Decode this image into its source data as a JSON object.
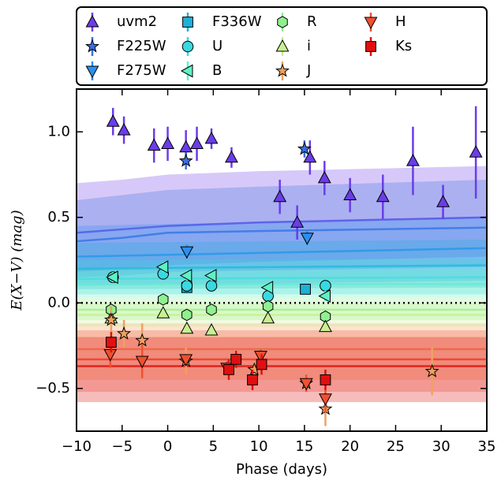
{
  "chart_data": {
    "type": "scatter",
    "xlabel": "Phase (days)",
    "ylabel": "E(X−V)  (mag)",
    "xlim": [
      -10,
      35
    ],
    "ylim": [
      -0.75,
      1.25
    ],
    "xticks": [
      {
        "value": -10,
        "label": "−10"
      },
      {
        "value": -5,
        "label": "−5"
      },
      0,
      5,
      10,
      15,
      20,
      25,
      30,
      35
    ],
    "yticks": [
      {
        "value": -0.5,
        "label": "−0.5"
      },
      {
        "value": 0,
        "label": "0.0"
      },
      0.5,
      {
        "value": 1,
        "label": "1.0"
      }
    ],
    "reference_line": 0,
    "series": [
      {
        "name": "uvm2",
        "color": "#6a3de8",
        "marker": "^",
        "x": [
          -6,
          -4.8,
          -1.5,
          0,
          2,
          3.2,
          4.8,
          7,
          12.3,
          14.2,
          15.6,
          17.2,
          20,
          23.6,
          26.9,
          30.2,
          33.8
        ],
        "values": [
          1.06,
          1.01,
          0.92,
          0.93,
          0.91,
          0.93,
          0.96,
          0.85,
          0.62,
          0.47,
          0.85,
          0.73,
          0.63,
          0.62,
          0.83,
          0.59,
          0.88
        ],
        "errors": [
          0.08,
          0.08,
          0.1,
          0.1,
          0.1,
          0.1,
          0.06,
          0.06,
          0.1,
          0.1,
          0.1,
          0.1,
          0.1,
          0.13,
          0.2,
          0.1,
          0.27
        ],
        "model": {
          "x": [
            -10,
            -5,
            0,
            10,
            35
          ],
          "mid": [
            0.41,
            0.43,
            0.45,
            0.47,
            0.5
          ],
          "lo": [
            0.18,
            0.2,
            0.22,
            0.24,
            0.27
          ],
          "hi": [
            0.7,
            0.72,
            0.75,
            0.77,
            0.8
          ]
        }
      },
      {
        "name": "F225W",
        "color": "#3c6ee0",
        "marker": "*",
        "x": [
          2,
          15
        ],
        "values": [
          0.83,
          0.9
        ],
        "errors": [
          0.05,
          0.05
        ],
        "model": {
          "x": [
            -10,
            -5,
            0,
            10,
            35
          ],
          "mid": [
            0.36,
            0.38,
            0.41,
            0.42,
            0.44
          ],
          "lo": [
            0.15,
            0.16,
            0.18,
            0.19,
            0.21
          ],
          "hi": [
            0.6,
            0.63,
            0.66,
            0.68,
            0.72
          ]
        }
      },
      {
        "name": "F275W",
        "color": "#2a8ff0",
        "marker": "v",
        "x": [
          2.1,
          15.3
        ],
        "values": [
          0.3,
          0.38
        ],
        "errors": [
          0.04,
          0.04
        ],
        "model": {
          "x": [
            -10,
            35
          ],
          "mid": [
            0.27,
            0.32
          ],
          "lo": [
            0.1,
            0.13
          ],
          "hi": [
            0.45,
            0.5
          ]
        }
      },
      {
        "name": "F336W",
        "color": "#1fb0d8",
        "marker": "s",
        "x": [
          2.1,
          15.1
        ],
        "values": [
          0.09,
          0.08
        ],
        "errors": [
          0.02,
          0.02
        ],
        "model": {
          "x": [
            -10,
            35
          ],
          "mid": [
            0.2,
            0.22
          ],
          "lo": [
            0.08,
            0.09
          ],
          "hi": [
            0.35,
            0.37
          ]
        }
      },
      {
        "name": "U",
        "color": "#3ad8e0",
        "marker": "o",
        "x": [
          -6,
          -0.5,
          2.1,
          4.8,
          11,
          17.3
        ],
        "values": [
          0.15,
          0.17,
          0.1,
          0.1,
          0.04,
          0.1
        ],
        "errors": [
          0.02,
          0.02,
          0.02,
          0.02,
          0.02,
          0.02
        ],
        "model": {
          "x": [
            -10,
            35
          ],
          "mid": [
            0.14,
            0.15
          ],
          "lo": [
            0.05,
            0.05
          ],
          "hi": [
            0.25,
            0.26
          ]
        }
      },
      {
        "name": "B",
        "color": "#60f0c8",
        "marker": "<",
        "x": [
          -6,
          -0.5,
          2.1,
          4.8,
          11,
          17.3
        ],
        "values": [
          0.15,
          0.21,
          0.16,
          0.16,
          0.09,
          0.04
        ],
        "errors": [
          0.03,
          0.03,
          0.03,
          0.03,
          0.03,
          0.03
        ],
        "model": {
          "x": [
            -10,
            35
          ],
          "mid": [
            0.11,
            0.11
          ],
          "lo": [
            0.03,
            0.03
          ],
          "hi": [
            0.19,
            0.19
          ]
        }
      },
      {
        "name": "R",
        "color": "#90f090",
        "marker": "h",
        "x": [
          -6.2,
          -0.5,
          2.1,
          4.8,
          11,
          17.3
        ],
        "values": [
          -0.04,
          0.02,
          -0.07,
          -0.04,
          -0.02,
          -0.08
        ],
        "errors": [
          0.02,
          0.02,
          0.02,
          0.02,
          0.02,
          0.02
        ],
        "model": {
          "x": [
            -10,
            35
          ],
          "mid": [
            -0.04,
            -0.04
          ],
          "lo": [
            -0.1,
            -0.1
          ],
          "hi": [
            0.03,
            0.03
          ]
        }
      },
      {
        "name": "i",
        "color": "#c8f090",
        "marker": "^",
        "x": [
          -6.2,
          -0.5,
          2.1,
          4.8,
          11,
          17.3
        ],
        "values": [
          -0.09,
          -0.06,
          -0.15,
          -0.16,
          -0.09,
          -0.14
        ],
        "errors": [
          0.02,
          0.02,
          0.02,
          0.02,
          0.02,
          0.02
        ],
        "model": {
          "x": [
            -10,
            35
          ],
          "mid": [
            -0.07,
            -0.07
          ],
          "lo": [
            -0.14,
            -0.14
          ],
          "hi": [
            0,
            0
          ]
        }
      },
      {
        "name": "J",
        "color": "#f0a060",
        "marker": "*",
        "x": [
          -6.2,
          -4.8,
          -2.8,
          2,
          9.5,
          15.2,
          17.3,
          29
        ],
        "values": [
          -0.1,
          -0.18,
          -0.22,
          -0.34,
          -0.39,
          -0.47,
          -0.62,
          -0.4
        ],
        "errors": [
          0.08,
          0.08,
          0.1,
          0.08,
          0.05,
          0.05,
          0.1,
          0.14
        ],
        "model": {
          "x": [
            -10,
            35
          ],
          "mid": [
            -0.27,
            -0.27
          ],
          "lo": [
            -0.45,
            -0.45
          ],
          "hi": [
            -0.12,
            -0.12
          ]
        }
      },
      {
        "name": "H",
        "color": "#f05030",
        "marker": "v",
        "x": [
          -6.3,
          -2.8,
          2,
          6.5,
          10.2,
          15.2,
          17.3
        ],
        "values": [
          -0.3,
          -0.34,
          -0.33,
          -0.38,
          -0.31,
          -0.47,
          -0.56
        ],
        "errors": [
          0.08,
          0.1,
          0.03,
          0.04,
          0.04,
          0.05,
          0.08
        ],
        "model": {
          "x": [
            -10,
            35
          ],
          "mid": [
            -0.33,
            -0.33
          ],
          "lo": [
            -0.52,
            -0.52
          ],
          "hi": [
            -0.16,
            -0.16
          ]
        }
      },
      {
        "name": "Ks",
        "color": "#e01010",
        "marker": "s",
        "x": [
          -6.2,
          6.7,
          7.5,
          9.3,
          10.3,
          17.3
        ],
        "values": [
          -0.23,
          -0.39,
          -0.33,
          -0.45,
          -0.36,
          -0.45
        ],
        "errors": [
          0.06,
          0.06,
          0.05,
          0.06,
          0.06,
          0.06
        ],
        "model": {
          "x": [
            -10,
            35
          ],
          "mid": [
            -0.37,
            -0.37
          ],
          "lo": [
            -0.58,
            -0.58
          ],
          "hi": [
            -0.2,
            -0.2
          ]
        }
      }
    ]
  }
}
